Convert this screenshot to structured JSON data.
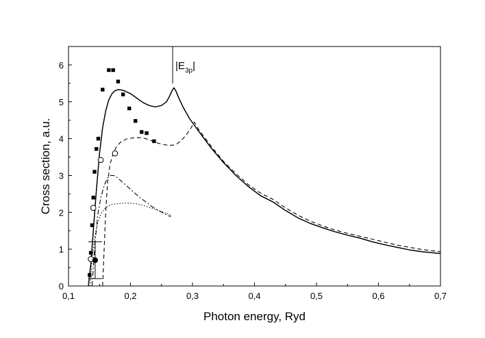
{
  "chart_data": {
    "type": "line",
    "title": "",
    "xlabel": "Photon energy, Ryd",
    "ylabel": "Cross section, a.u.",
    "xlim": [
      0.1,
      0.7
    ],
    "ylim": [
      0,
      6.5
    ],
    "x_ticks": [
      0.1,
      0.2,
      0.3,
      0.4,
      0.5,
      0.6,
      0.7
    ],
    "x_tick_labels": [
      "0,1",
      "0,2",
      "0,3",
      "0,4",
      "0,5",
      "0,6",
      "0,7"
    ],
    "y_ticks": [
      0,
      1,
      2,
      3,
      4,
      5,
      6
    ],
    "y_tick_labels": [
      "0",
      "1",
      "2",
      "3",
      "4",
      "5",
      "6"
    ],
    "grid": false,
    "annotation": {
      "prefix": "|E",
      "subscript": "3p",
      "suffix": "|",
      "x": 0.268
    },
    "series": [
      {
        "name": "solid",
        "style": "solid",
        "x": [
          0.132,
          0.136,
          0.14,
          0.145,
          0.15,
          0.155,
          0.16,
          0.165,
          0.17,
          0.175,
          0.18,
          0.185,
          0.19,
          0.2,
          0.21,
          0.22,
          0.23,
          0.24,
          0.25,
          0.258,
          0.263,
          0.267,
          0.27,
          0.273,
          0.278,
          0.285,
          0.295,
          0.31,
          0.33,
          0.35,
          0.37,
          0.39,
          0.41,
          0.43,
          0.45,
          0.47,
          0.49,
          0.51,
          0.53,
          0.55,
          0.57,
          0.59,
          0.61,
          0.63,
          0.65,
          0.67,
          0.7
        ],
        "y": [
          0.0,
          0.6,
          1.5,
          2.6,
          3.6,
          4.3,
          4.75,
          5.05,
          5.22,
          5.3,
          5.33,
          5.32,
          5.3,
          5.22,
          5.1,
          4.98,
          4.9,
          4.86,
          4.9,
          5.0,
          5.15,
          5.3,
          5.38,
          5.3,
          5.1,
          4.85,
          4.55,
          4.2,
          3.75,
          3.35,
          3.0,
          2.7,
          2.45,
          2.28,
          2.05,
          1.85,
          1.7,
          1.58,
          1.47,
          1.38,
          1.3,
          1.2,
          1.12,
          1.05,
          0.98,
          0.93,
          0.88
        ]
      },
      {
        "name": "dashed",
        "style": "dashed",
        "x": [
          0.155,
          0.158,
          0.16,
          0.163,
          0.167,
          0.172,
          0.178,
          0.185,
          0.195,
          0.21,
          0.22,
          0.23,
          0.24,
          0.25,
          0.26,
          0.268,
          0.275,
          0.282,
          0.29,
          0.298,
          0.303,
          0.31,
          0.33,
          0.35,
          0.37,
          0.39,
          0.41,
          0.43,
          0.45,
          0.47,
          0.49,
          0.51,
          0.53,
          0.55,
          0.57,
          0.59,
          0.61,
          0.63,
          0.65,
          0.67,
          0.7
        ],
        "y": [
          0.0,
          1.2,
          2.0,
          2.8,
          3.3,
          3.6,
          3.8,
          3.92,
          4.0,
          4.03,
          4.02,
          3.97,
          3.9,
          3.85,
          3.82,
          3.82,
          3.86,
          3.95,
          4.1,
          4.3,
          4.45,
          4.25,
          3.8,
          3.38,
          3.05,
          2.75,
          2.52,
          2.35,
          2.12,
          1.92,
          1.76,
          1.63,
          1.52,
          1.43,
          1.35,
          1.27,
          1.19,
          1.11,
          1.05,
          0.99,
          0.93
        ]
      },
      {
        "name": "dash-dot",
        "style": "dashdot",
        "x": [
          0.138,
          0.14,
          0.143,
          0.147,
          0.152,
          0.158,
          0.163,
          0.168,
          0.173,
          0.178,
          0.185,
          0.195,
          0.205,
          0.215,
          0.225,
          0.235,
          0.245,
          0.255,
          0.265
        ],
        "y": [
          0.0,
          0.5,
          1.2,
          1.9,
          2.4,
          2.75,
          2.93,
          3.0,
          3.0,
          2.95,
          2.85,
          2.7,
          2.55,
          2.4,
          2.28,
          2.15,
          2.05,
          1.96,
          1.88
        ]
      },
      {
        "name": "dotted",
        "style": "dotted",
        "x": [
          0.135,
          0.138,
          0.142,
          0.147,
          0.152,
          0.158,
          0.165,
          0.172,
          0.18,
          0.19,
          0.2,
          0.21,
          0.22,
          0.23,
          0.24,
          0.25,
          0.26,
          0.265
        ],
        "y": [
          0.0,
          0.7,
          1.3,
          1.7,
          1.95,
          2.1,
          2.18,
          2.22,
          2.24,
          2.25,
          2.25,
          2.23,
          2.19,
          2.14,
          2.08,
          2.02,
          1.96,
          1.92
        ]
      }
    ],
    "markers": [
      {
        "name": "filled squares",
        "shape": "square",
        "fill": "filled",
        "x": [
          0.134,
          0.136,
          0.138,
          0.14,
          0.142,
          0.145,
          0.148,
          0.155,
          0.165,
          0.172,
          0.18,
          0.188,
          0.198,
          0.208,
          0.218,
          0.226,
          0.238
        ],
        "y": [
          0.3,
          0.9,
          1.65,
          2.4,
          3.1,
          3.72,
          4.0,
          5.33,
          5.86,
          5.86,
          5.55,
          5.2,
          4.82,
          4.48,
          4.18,
          4.15,
          3.93
        ]
      },
      {
        "name": "open circles",
        "shape": "circle",
        "fill": "open",
        "x": [
          0.136,
          0.14,
          0.152,
          0.175
        ],
        "y": [
          0.73,
          2.12,
          3.42,
          3.6
        ]
      },
      {
        "name": "filled circle with error bar",
        "shape": "circle",
        "fill": "filled",
        "x": [
          0.143
        ],
        "y": [
          0.7
        ],
        "y_err": [
          0.5
        ]
      }
    ]
  }
}
